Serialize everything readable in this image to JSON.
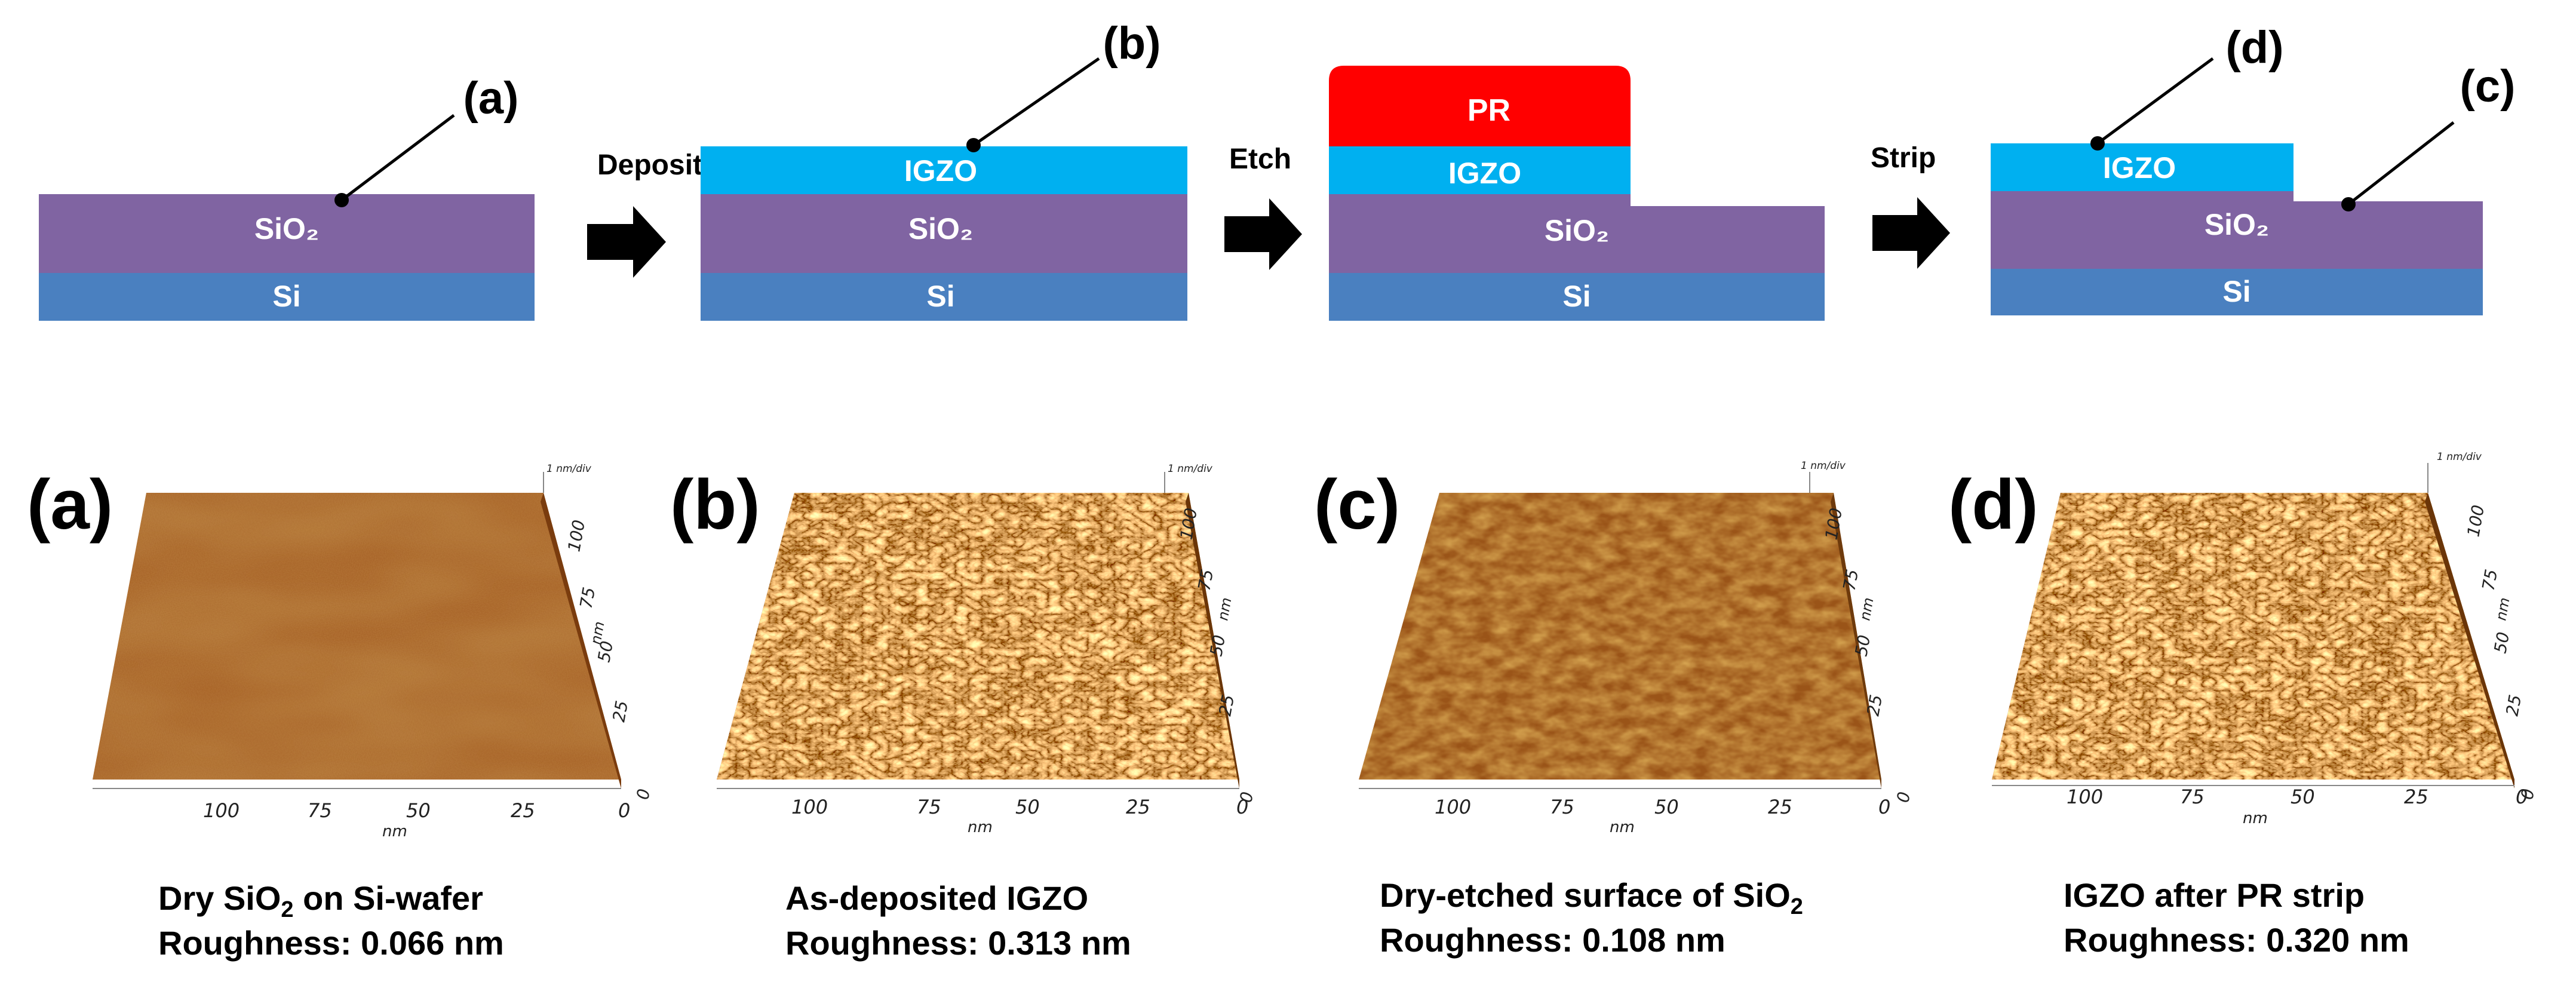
{
  "colors": {
    "si": "#4a80c0",
    "sio2": "#8064a2",
    "igzo": "#00b0f0",
    "pr": "#ff0000",
    "arrow": "#000000",
    "afm_base": "#a0581e"
  },
  "process": {
    "step1": {
      "sio2": "SiO₂",
      "si": "Si",
      "callout": "(a)"
    },
    "step2": {
      "igzo": "IGZO",
      "sio2": "SiO₂",
      "si": "Si",
      "callout": "(b)"
    },
    "step3": {
      "pr": "PR",
      "igzo": "IGZO",
      "sio2": "SiO₂",
      "si": "Si"
    },
    "step4": {
      "igzo": "IGZO",
      "sio2": "SiO₂",
      "si": "Si",
      "callout_d": "(d)",
      "callout_c": "(c)"
    },
    "arrows": [
      {
        "label": "Deposition",
        "icon": "right-arrow-icon"
      },
      {
        "label": "Etch",
        "icon": "right-arrow-icon"
      },
      {
        "label": "Strip",
        "icon": "right-arrow-icon"
      }
    ]
  },
  "afm": {
    "scale_label": "1 nm/div",
    "unit": "nm",
    "x_ticks": [
      "100",
      "75",
      "50",
      "25",
      "0"
    ],
    "y_ticks": [
      "0",
      "25",
      "50",
      "75",
      "100"
    ],
    "panels": [
      {
        "id": "(a)",
        "caption_line1_pre": "Dry SiO",
        "caption_line1_sub": "2",
        "caption_line1_post": " on Si-wafer",
        "roughness": "Roughness: 0.066 nm",
        "roughness_nm": 0.066
      },
      {
        "id": "(b)",
        "caption_line1_pre": "As-deposited IGZO",
        "caption_line1_sub": "",
        "caption_line1_post": "",
        "roughness": "Roughness: 0.313 nm",
        "roughness_nm": 0.313
      },
      {
        "id": "(c)",
        "caption_line1_pre": "Dry-etched surface of SiO",
        "caption_line1_sub": "2",
        "caption_line1_post": "",
        "roughness": "Roughness: 0.108 nm",
        "roughness_nm": 0.108
      },
      {
        "id": "(d)",
        "caption_line1_pre": "IGZO after PR strip",
        "caption_line1_sub": "",
        "caption_line1_post": "",
        "roughness": "Roughness: 0.320 nm",
        "roughness_nm": 0.32
      }
    ]
  }
}
